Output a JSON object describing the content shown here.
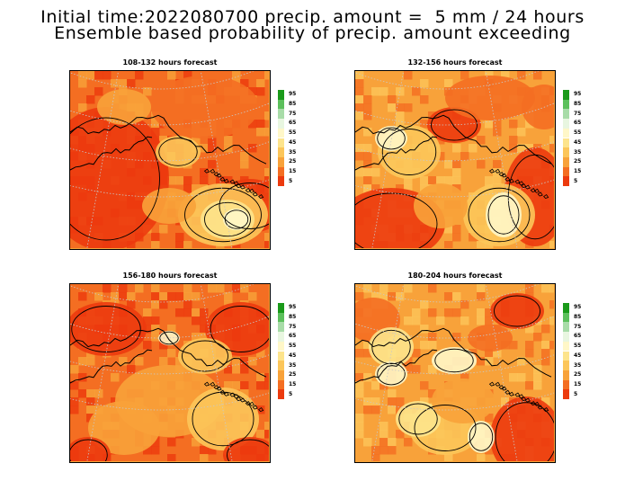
{
  "header": {
    "line1": "Initial time:2022080700 precip. amount =  5 mm / 24 hours",
    "line2": "Ensemble based probability of precip. amount exceeding"
  },
  "panels": [
    {
      "title": "108-132 hours forecast"
    },
    {
      "title": "132-156 hours forecast"
    },
    {
      "title": "156-180 hours forecast"
    },
    {
      "title": "180-204 hours forecast"
    }
  ],
  "legend": {
    "labels": [
      "95",
      "85",
      "75",
      "65",
      "55",
      "45",
      "35",
      "25",
      "15",
      "5"
    ],
    "colors": [
      "#1a9a1a",
      "#5cc05c",
      "#a8dca8",
      "#e8f6e0",
      "#fff7c8",
      "#fde48c",
      "#fcc65a",
      "#f8a23a",
      "#f46e22",
      "#ec3a0e"
    ]
  },
  "colors": {
    "low": "#ec3a0e",
    "mid_low": "#f46e22",
    "mid": "#f8a23a",
    "mid_high": "#fcc65a",
    "high": "#fde48c",
    "highest": "#fff7c8"
  }
}
